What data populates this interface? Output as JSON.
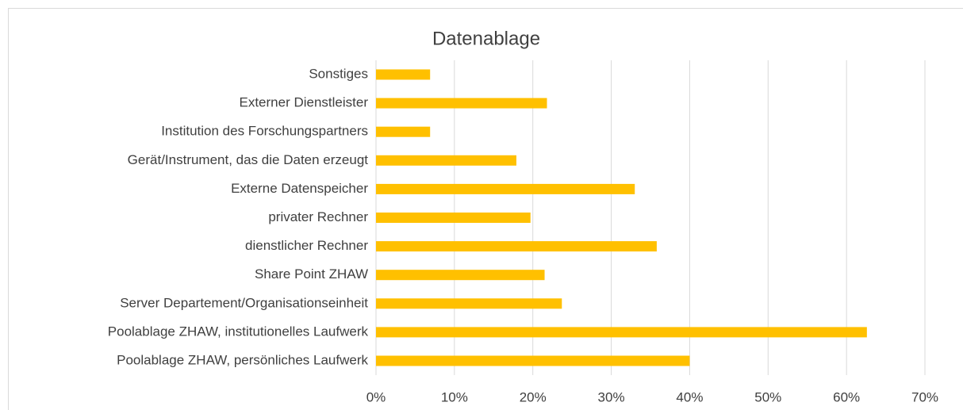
{
  "chart_data": {
    "type": "barh",
    "title": "Datenablage",
    "categories": [
      "Sonstiges",
      "Externer Dienstleister",
      "Institution des Forschungspartners",
      "Gerät/Instrument, das die Daten erzeugt",
      "Externe Datenspeicher",
      "privater Rechner",
      "dienstlicher Rechner",
      "Share Point ZHAW",
      "Server Departement/Organisationseinheit",
      "Poolablage ZHAW, institutionelles Laufwerk",
      "Poolablage ZHAW, persönliches Laufwerk"
    ],
    "values": [
      6.9,
      21.8,
      6.9,
      17.9,
      33,
      19.7,
      35.8,
      21.5,
      23.7,
      62.6,
      40
    ],
    "color": "#ffc000",
    "xlim": [
      0,
      70
    ],
    "xticks": [
      {
        "value": 0,
        "label": "0%"
      },
      {
        "value": 10,
        "label": "10%"
      },
      {
        "value": 20,
        "label": "20%"
      },
      {
        "value": 30,
        "label": "30%"
      },
      {
        "value": 40,
        "label": "40%"
      },
      {
        "value": 50,
        "label": "50%"
      },
      {
        "value": 60,
        "label": "60%"
      },
      {
        "value": 70,
        "label": "70%"
      }
    ],
    "grid": true
  }
}
